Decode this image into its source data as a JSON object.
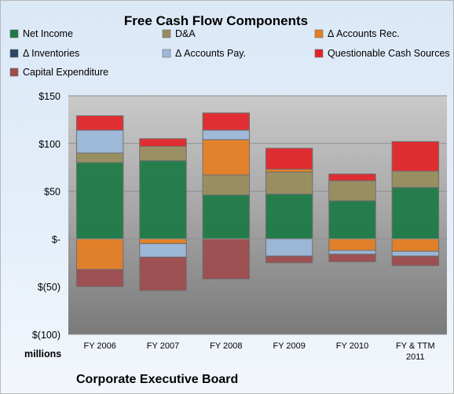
{
  "chart_data": {
    "type": "bar",
    "stacked": true,
    "title": "Free Cash Flow Components",
    "units_label": "millions",
    "source_label": "Corporate Executive Board",
    "categories": [
      "FY 2006",
      "FY 2007",
      "FY 2008",
      "FY 2009",
      "FY 2010",
      "FY & TTM|2011"
    ],
    "ylim": [
      -100,
      150
    ],
    "y_ticks": [
      150,
      100,
      50,
      0,
      -50,
      -100
    ],
    "y_tick_labels": [
      "$150",
      "$100",
      "$50",
      "$-",
      "$(50)",
      "$(100)"
    ],
    "grid": true,
    "legend_position": "top",
    "series": [
      {
        "name": "Net Income",
        "color": "#1c7a45",
        "values": [
          80,
          82,
          46,
          47,
          40,
          54
        ]
      },
      {
        "name": "D&A",
        "color": "#988c5d",
        "values": [
          10,
          15,
          21,
          23,
          21,
          17
        ]
      },
      {
        "name": "Δ Accounts Rec.",
        "color": "#e67e22",
        "values": [
          -32,
          -5,
          37,
          3,
          -12,
          -13
        ]
      },
      {
        "name": "Δ Inventories",
        "color": "#2c4660",
        "values": [
          0,
          0,
          0,
          0,
          0,
          0
        ]
      },
      {
        "name": "Δ Accounts Pay.",
        "color": "#9cb8da",
        "values": [
          24,
          -14,
          10,
          -18,
          -4,
          -5
        ]
      },
      {
        "name": "Questionable Cash Sources",
        "color": "#e32228",
        "values": [
          15,
          8,
          18,
          22,
          7,
          31
        ]
      },
      {
        "name": "Capital Expenditure",
        "color": "#9e4b4e",
        "values": [
          -18,
          -35,
          -42,
          -7,
          -8,
          -10
        ]
      }
    ]
  }
}
